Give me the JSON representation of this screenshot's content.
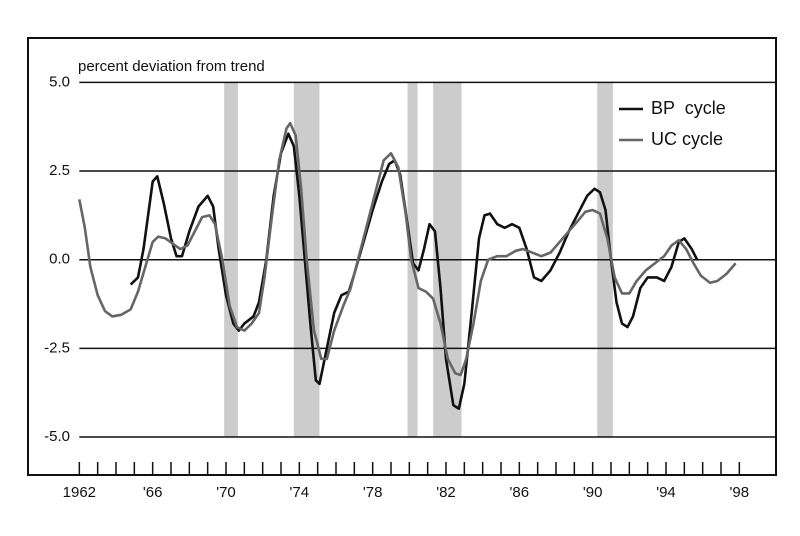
{
  "chart_data": {
    "type": "line",
    "y_label": "percent deviation from trend",
    "xlim": [
      1959.2,
      2000.0
    ],
    "ylim": [
      -6.07,
      6.25
    ],
    "yticks": [
      {
        "value": 5,
        "label": "5.0"
      },
      {
        "value": 2.5,
        "label": "2.5"
      },
      {
        "value": 0,
        "label": "0.0"
      },
      {
        "value": -2.5,
        "label": "-2.5"
      },
      {
        "value": -5,
        "label": "-5.0"
      }
    ],
    "xticks": [
      {
        "value": 1962,
        "label": "1962"
      },
      {
        "value": 1966,
        "label": "'66"
      },
      {
        "value": 1970,
        "label": "'70"
      },
      {
        "value": 1974,
        "label": "'74"
      },
      {
        "value": 1978,
        "label": "'78"
      },
      {
        "value": 1982,
        "label": "'82"
      },
      {
        "value": 1986,
        "label": "'86"
      },
      {
        "value": 1990,
        "label": "'90"
      },
      {
        "value": 1994,
        "label": "'94"
      },
      {
        "value": 1998,
        "label": "'98"
      }
    ],
    "x_minor_ticks": [
      1963,
      1964,
      1965,
      1967,
      1968,
      1969,
      1971,
      1972,
      1973,
      1975,
      1976,
      1977,
      1979,
      1980,
      1981,
      1983,
      1984,
      1985,
      1987,
      1988,
      1989,
      1991,
      1992,
      1993,
      1995,
      1996,
      1997
    ],
    "grid": true,
    "legend": "upper right",
    "shaded_regions": [
      {
        "start": 1969.9,
        "end": 1970.65,
        "color": "#cccccc"
      },
      {
        "start": 1973.7,
        "end": 1975.1,
        "color": "#cccccc"
      },
      {
        "start": 1979.9,
        "end": 1980.45,
        "color": "#cccccc"
      },
      {
        "start": 1981.3,
        "end": 1982.85,
        "color": "#cccccc"
      },
      {
        "start": 1990.25,
        "end": 1991.1,
        "color": "#cccccc"
      }
    ],
    "series": [
      {
        "name": "BP  cycle",
        "color": "#111111",
        "x": [
          1964.8,
          1965.2,
          1965.5,
          1966.0,
          1966.25,
          1966.6,
          1967.0,
          1967.3,
          1967.6,
          1968.0,
          1968.5,
          1969.0,
          1969.3,
          1969.6,
          1970.0,
          1970.4,
          1970.7,
          1971.0,
          1971.5,
          1971.8,
          1972.2,
          1972.6,
          1973.0,
          1973.4,
          1973.7,
          1974.0,
          1974.3,
          1974.6,
          1974.9,
          1975.1,
          1975.5,
          1975.9,
          1976.3,
          1976.7,
          1977.0,
          1977.5,
          1978.0,
          1978.5,
          1978.9,
          1979.2,
          1979.5,
          1979.9,
          1980.2,
          1980.5,
          1980.8,
          1981.1,
          1981.4,
          1981.7,
          1982.0,
          1982.4,
          1982.7,
          1983.0,
          1983.4,
          1983.8,
          1984.1,
          1984.4,
          1984.8,
          1985.2,
          1985.6,
          1986.0,
          1986.4,
          1986.8,
          1987.2,
          1987.7,
          1988.2,
          1988.7,
          1989.2,
          1989.7,
          1990.1,
          1990.4,
          1990.7,
          1991.0,
          1991.3,
          1991.6,
          1991.9,
          1992.2,
          1992.6,
          1993.0,
          1993.5,
          1993.9,
          1994.3,
          1994.7,
          1995.0,
          1995.4,
          1995.7
        ],
        "values": [
          -0.7,
          -0.5,
          0.3,
          2.2,
          2.35,
          1.6,
          0.6,
          0.1,
          0.1,
          0.8,
          1.5,
          1.8,
          1.5,
          0.3,
          -1.0,
          -1.8,
          -2.0,
          -1.8,
          -1.6,
          -1.2,
          0.0,
          1.8,
          3.0,
          3.55,
          3.2,
          1.8,
          0.0,
          -1.8,
          -3.4,
          -3.5,
          -2.5,
          -1.5,
          -1.0,
          -0.9,
          -0.4,
          0.5,
          1.4,
          2.2,
          2.7,
          2.8,
          2.4,
          1.0,
          -0.1,
          -0.3,
          0.3,
          1.0,
          0.8,
          -0.8,
          -2.8,
          -4.1,
          -4.2,
          -3.5,
          -1.5,
          0.6,
          1.25,
          1.3,
          1.0,
          0.9,
          1.0,
          0.9,
          0.3,
          -0.5,
          -0.6,
          -0.3,
          0.2,
          0.8,
          1.3,
          1.8,
          2.0,
          1.9,
          1.4,
          0.0,
          -1.2,
          -1.8,
          -1.9,
          -1.6,
          -0.8,
          -0.5,
          -0.5,
          -0.6,
          -0.2,
          0.5,
          0.6,
          0.3,
          0.0
        ]
      },
      {
        "name": "UC cycle",
        "color": "#666666",
        "x": [
          1962.0,
          1962.3,
          1962.6,
          1963.0,
          1963.4,
          1963.8,
          1964.3,
          1964.8,
          1965.2,
          1965.6,
          1966.0,
          1966.3,
          1966.7,
          1967.1,
          1967.5,
          1967.9,
          1968.3,
          1968.7,
          1969.1,
          1969.4,
          1969.8,
          1970.2,
          1970.6,
          1971.0,
          1971.4,
          1971.8,
          1972.1,
          1972.5,
          1972.9,
          1973.3,
          1973.5,
          1973.8,
          1974.1,
          1974.4,
          1974.8,
          1975.2,
          1975.5,
          1975.9,
          1976.4,
          1976.8,
          1977.2,
          1977.7,
          1978.2,
          1978.6,
          1979.0,
          1979.4,
          1979.8,
          1980.1,
          1980.5,
          1980.9,
          1981.3,
          1981.7,
          1982.1,
          1982.5,
          1982.8,
          1983.1,
          1983.5,
          1983.9,
          1984.3,
          1984.8,
          1985.3,
          1985.8,
          1986.2,
          1986.7,
          1987.2,
          1987.7,
          1988.2,
          1988.7,
          1989.2,
          1989.6,
          1990.0,
          1990.4,
          1990.8,
          1991.2,
          1991.6,
          1992.0,
          1992.4,
          1992.9,
          1993.4,
          1993.9,
          1994.3,
          1994.7,
          1995.1,
          1995.5,
          1995.9,
          1996.4,
          1996.8,
          1997.3,
          1997.8
        ],
        "values": [
          1.7,
          0.9,
          -0.2,
          -1.0,
          -1.45,
          -1.6,
          -1.55,
          -1.4,
          -0.9,
          -0.2,
          0.5,
          0.65,
          0.6,
          0.45,
          0.3,
          0.4,
          0.8,
          1.2,
          1.25,
          1.0,
          0.0,
          -1.3,
          -1.9,
          -2.0,
          -1.8,
          -1.5,
          -0.5,
          1.2,
          2.8,
          3.7,
          3.85,
          3.5,
          2.0,
          0.0,
          -2.0,
          -2.8,
          -2.8,
          -2.0,
          -1.3,
          -0.8,
          0.0,
          1.0,
          2.0,
          2.8,
          3.0,
          2.6,
          1.3,
          0.0,
          -0.8,
          -0.9,
          -1.1,
          -1.8,
          -2.8,
          -3.2,
          -3.25,
          -2.8,
          -1.8,
          -0.6,
          0.0,
          0.1,
          0.1,
          0.25,
          0.3,
          0.2,
          0.1,
          0.2,
          0.5,
          0.8,
          1.1,
          1.35,
          1.4,
          1.3,
          0.6,
          -0.5,
          -0.95,
          -0.95,
          -0.6,
          -0.3,
          -0.1,
          0.1,
          0.4,
          0.55,
          0.3,
          -0.1,
          -0.45,
          -0.65,
          -0.6,
          -0.4,
          -0.1
        ]
      }
    ]
  }
}
